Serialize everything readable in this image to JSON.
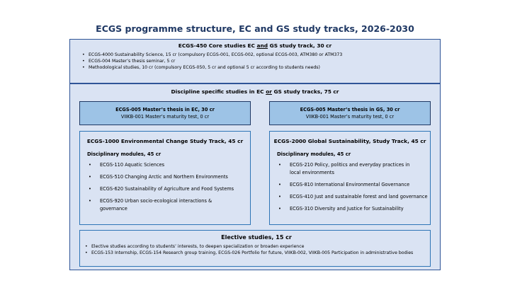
{
  "title": "ECGS programme structure, EC and GS study tracks, 2026-2030",
  "core": {
    "title": [
      "ECGS-450 Core studies EC ",
      "and",
      " GS study track, 30 cr"
    ],
    "items": [
      "ECGS-4000 Sustainability Science, 15 cr (compulsory ECGS-001, ECGS-002, optional ECGS-003, ATM380 or ATM373",
      "ECGS-004 Master’s thesis seminar, 5 cr",
      "Methodological studies, 10 cr (compulsory ECGS-050, 5 cr and optional 5 cr according to students needs)"
    ]
  },
  "discipline": {
    "title": [
      "Discipline specific studies in EC ",
      "or",
      " GS study tracks, 75 cr"
    ],
    "thesis_ec": [
      "ECGS-005 Master’s thesis in EC, 30 cr",
      "VIIKB-001 Master’s maturity test, 0 cr"
    ],
    "thesis_gs": [
      "ECGS-005 Master’s thesis in GS, 30 cr",
      "VIIKB-001 Master’s maturity test, 0 cr"
    ],
    "ec_track": {
      "title": "ECGS-1000 Environmental Change Study Track, 45 cr",
      "subtitle": "Disciplinary modules, 45 cr",
      "items": [
        "ECGS-110 Aquatic Sciences",
        "ECGS-510 Changing Arctic and Northern Environments",
        "ECGS-620 Sustainability of Agriculture and Food Systems",
        "ECGS-920 Urban socio-ecological interactions & governance"
      ]
    },
    "gs_track": {
      "title": "ECGS-2000 Global Sustainability, Study Track, 45 cr",
      "subtitle": "Disciplinary modules, 45 cr",
      "items": [
        "ECGS-210 Policy, politics and everyday practices in local environments",
        "ECGS-810 International Environmental Governance",
        "ECGS-410 Just and sustainable forest and land governance",
        "ECGS-310 Diversity and Justice for Sustainability"
      ]
    }
  },
  "elective": {
    "title": "Elective studies, 15 cr",
    "items": [
      "Elective studies according to students’ interests, to deepen specialization or broaden experience",
      "ECGS-153 Internship, ECGS-154 Research group training, ECGS-026 Portfolio for future, VIIKB-002, VIIKB-005 Participation in administrative bodies"
    ]
  }
}
